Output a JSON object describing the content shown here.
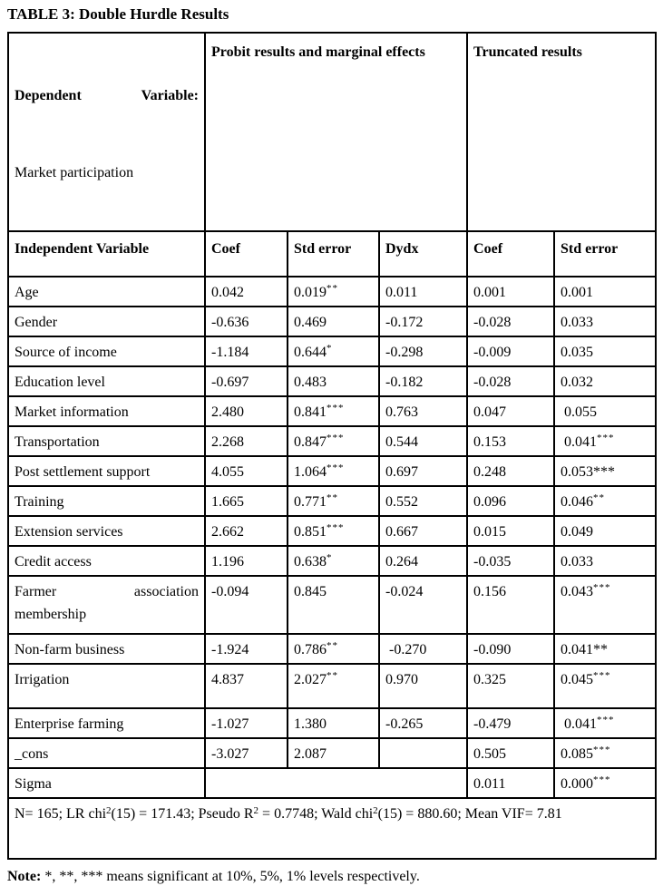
{
  "title": "TABLE 3: Double Hurdle Results",
  "header": {
    "dependent_line1": "Dependent Variable:",
    "dependent_line2": "Market participation",
    "probit": "Probit results and marginal effects",
    "truncated": "Truncated results",
    "columns": [
      "Independent Variable",
      "Coef",
      "Std error",
      "Dydx",
      "Coef",
      "Std error"
    ]
  },
  "table": {
    "rows": [
      {
        "label": "Age",
        "cells": [
          {
            "v": "0.042"
          },
          {
            "v": "0.019",
            "s": "**"
          },
          {
            "v": "0.011"
          },
          {
            "v": "0.001"
          },
          {
            "v": "0.001"
          }
        ]
      },
      {
        "label": "Gender",
        "cells": [
          {
            "v": "-0.636"
          },
          {
            "v": "0.469"
          },
          {
            "v": "-0.172"
          },
          {
            "v": "-0.028"
          },
          {
            "v": "0.033"
          }
        ]
      },
      {
        "label": "Source of income",
        "cells": [
          {
            "v": "-1.184"
          },
          {
            "v": "0.644",
            "s": "*"
          },
          {
            "v": "-0.298"
          },
          {
            "v": "-0.009"
          },
          {
            "v": "0.035"
          }
        ]
      },
      {
        "label": "Education level",
        "cells": [
          {
            "v": "-0.697"
          },
          {
            "v": "0.483"
          },
          {
            "v": "-0.182"
          },
          {
            "v": "-0.028"
          },
          {
            "v": "0.032"
          }
        ]
      },
      {
        "label": "Market information",
        "cells": [
          {
            "v": "2.480"
          },
          {
            "v": "0.841",
            "s": "***"
          },
          {
            "v": "0.763"
          },
          {
            "v": "0.047"
          },
          {
            "v": " 0.055"
          }
        ]
      },
      {
        "label": "Transportation",
        "cells": [
          {
            "v": "2.268"
          },
          {
            "v": "0.847",
            "s": "***"
          },
          {
            "v": "0.544"
          },
          {
            "v": "0.153"
          },
          {
            "v": " 0.041",
            "s": "***"
          }
        ]
      },
      {
        "label": "Post settlement support",
        "cells": [
          {
            "v": "4.055"
          },
          {
            "v": "1.064",
            "s": "***"
          },
          {
            "v": "0.697"
          },
          {
            "v": "0.248"
          },
          {
            "v": "0.053***"
          }
        ]
      },
      {
        "label": "Training",
        "cells": [
          {
            "v": "1.665"
          },
          {
            "v": "0.771",
            "s": "**"
          },
          {
            "v": "0.552"
          },
          {
            "v": "0.096"
          },
          {
            "v": "0.046",
            "s": "**"
          }
        ]
      },
      {
        "label": "Extension services",
        "cells": [
          {
            "v": "2.662"
          },
          {
            "v": "0.851",
            "s": "***"
          },
          {
            "v": "0.667"
          },
          {
            "v": "0.015"
          },
          {
            "v": "0.049"
          }
        ]
      },
      {
        "label": "Credit access",
        "cells": [
          {
            "v": "1.196"
          },
          {
            "v": "0.638",
            "s": "*"
          },
          {
            "v": "0.264"
          },
          {
            "v": "-0.035"
          },
          {
            "v": "0.033"
          }
        ]
      },
      {
        "label": "Farmer association membership",
        "cells": [
          {
            "v": "-0.094"
          },
          {
            "v": "0.845"
          },
          {
            "v": "-0.024"
          },
          {
            "v": "0.156"
          },
          {
            "v": "0.043",
            "s": "***"
          }
        ]
      },
      {
        "label": "Non-farm business",
        "cells": [
          {
            "v": "-1.924"
          },
          {
            "v": "0.786",
            "s": "**"
          },
          {
            "v": " -0.270"
          },
          {
            "v": "-0.090"
          },
          {
            "v": "0.041**"
          }
        ]
      },
      {
        "label": "Irrigation",
        "cells": [
          {
            "v": "4.837"
          },
          {
            "v": "2.027",
            "s": "**"
          },
          {
            "v": "0.970"
          },
          {
            "v": "0.325"
          },
          {
            "v": "0.045",
            "s": "***"
          }
        ]
      },
      {
        "label": "Enterprise farming",
        "cells": [
          {
            "v": "-1.027"
          },
          {
            "v": "1.380"
          },
          {
            "v": "-0.265"
          },
          {
            "v": "-0.479"
          },
          {
            "v": " 0.041",
            "s": "***"
          }
        ]
      },
      {
        "label": "_cons",
        "cells": [
          {
            "v": "-3.027"
          },
          {
            "v": "2.087"
          },
          {
            "v": ""
          },
          {
            "v": "0.505"
          },
          {
            "v": "0.085",
            "s": "***"
          }
        ]
      },
      {
        "label": "Sigma",
        "cells": [
          {
            "v": "",
            "colspan": 3
          },
          {
            "v": "0.011"
          },
          {
            "v": "0.000",
            "s": "***"
          }
        ]
      }
    ],
    "footer_segments": [
      {
        "t": "N= 165; LR chi"
      },
      {
        "sup": "2"
      },
      {
        "t": "(15) = 171.43; Pseudo R"
      },
      {
        "sup": "2"
      },
      {
        "t": " = 0.7748; Wald chi"
      },
      {
        "sup": "2"
      },
      {
        "t": "(15) = 880.60; Mean VIF= 7.81"
      }
    ]
  },
  "note": {
    "label": "Note:",
    "text": " *, **, *** means significant at 10%, 5%, 1% levels respectively."
  },
  "colors": {
    "text": "#000000",
    "border": "#000000",
    "background": "#ffffff"
  }
}
